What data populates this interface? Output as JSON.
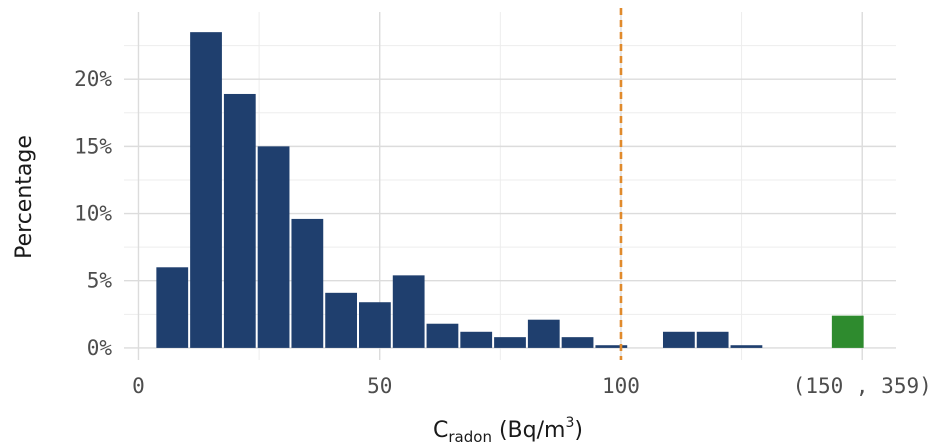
{
  "chart_data": {
    "type": "bar",
    "title": "",
    "xlabel_parts": {
      "pre": "C",
      "sub": "radon",
      "mid": " (Bq/m",
      "sup": "3",
      "post": ")"
    },
    "ylabel": "Percentage",
    "bin_width": 7,
    "bins": [
      {
        "start": 3.5,
        "value": 6.0
      },
      {
        "start": 10.5,
        "value": 23.5
      },
      {
        "start": 17.5,
        "value": 18.9
      },
      {
        "start": 24.5,
        "value": 15.0
      },
      {
        "start": 31.5,
        "value": 9.6
      },
      {
        "start": 38.5,
        "value": 4.1
      },
      {
        "start": 45.5,
        "value": 3.4
      },
      {
        "start": 52.5,
        "value": 5.4
      },
      {
        "start": 59.5,
        "value": 1.8
      },
      {
        "start": 66.5,
        "value": 1.2
      },
      {
        "start": 73.5,
        "value": 0.8
      },
      {
        "start": 80.5,
        "value": 2.1
      },
      {
        "start": 87.5,
        "value": 0.8
      },
      {
        "start": 94.5,
        "value": 0.2
      },
      {
        "start": 108.5,
        "value": 1.2
      },
      {
        "start": 115.5,
        "value": 1.2
      },
      {
        "start": 122.5,
        "value": 0.2
      }
    ],
    "overflow_bin": {
      "start": 143.5,
      "end": 150.5,
      "value": 2.4,
      "color": "#2e8b2e"
    },
    "bar_color": "#1f3f6e",
    "reference_line": {
      "x": 100,
      "color": "#e08a2c",
      "style": "dashed"
    },
    "xlim": [
      -3,
      157
    ],
    "ylim": [
      -0.9,
      25
    ],
    "x_ticks": [
      {
        "value": 0,
        "label": "0"
      },
      {
        "value": 50,
        "label": "50"
      },
      {
        "value": 100,
        "label": "100"
      },
      {
        "value": 150,
        "label": "(150 , 359)"
      }
    ],
    "x_minor_ticks": [
      25,
      75,
      125
    ],
    "y_ticks": [
      {
        "value": 0,
        "label": "0%"
      },
      {
        "value": 5,
        "label": "5%"
      },
      {
        "value": 10,
        "label": "10%"
      },
      {
        "value": 15,
        "label": "15%"
      },
      {
        "value": 20,
        "label": "20%"
      }
    ],
    "y_minor_ticks": [
      2.5,
      7.5,
      12.5,
      17.5,
      22.5
    ],
    "grid": true,
    "legend": "none"
  }
}
